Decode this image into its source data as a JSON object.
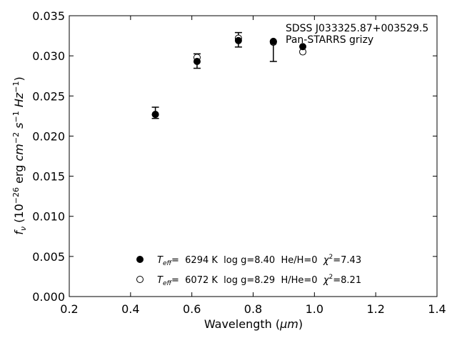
{
  "chart_data": {
    "type": "scatter",
    "title": "",
    "xlabel": "Wavelength",
    "xlabel_unit": "μm",
    "ylabel_prefix": "f",
    "ylabel_sub": "ν",
    "ylabel_mid": "(10",
    "ylabel_exp1": "−26",
    "ylabel_unit1": "erg",
    "ylabel_cm": "cm",
    "ylabel_exp2": "−2",
    "ylabel_s": "s",
    "ylabel_exp3": "−1",
    "ylabel_hz": "Hz",
    "ylabel_exp4": "−1",
    "xlim": [
      0.2,
      1.4
    ],
    "ylim": [
      0.0,
      0.035
    ],
    "x_ticks": [
      0.2,
      0.4,
      0.6,
      0.8,
      1.0,
      1.2,
      1.4
    ],
    "x_tick_labels": [
      "0.2",
      "0.4",
      "0.6",
      "0.8",
      "1.0",
      "1.2",
      "1.4"
    ],
    "y_ticks": [
      0.0,
      0.005,
      0.01,
      0.015,
      0.02,
      0.025,
      0.03,
      0.035
    ],
    "y_tick_labels": [
      "0.000",
      "0.005",
      "0.010",
      "0.015",
      "0.020",
      "0.025",
      "0.030",
      "0.035"
    ],
    "grid": false,
    "annotation": [
      "SDSS J033325.87+003529.5",
      "Pan-STARRS grizy"
    ],
    "observed": {
      "x": [
        0.481,
        0.617,
        0.752,
        0.866,
        0.962
      ],
      "y": [
        0.0229,
        0.02935,
        0.032,
        0.03055,
        0.0311
      ],
      "yerr_lo": [
        0.0007,
        0.0009,
        0.0009,
        0.00125,
        0.0
      ],
      "yerr_hi": [
        0.0007,
        0.0009,
        0.0009,
        0.00125,
        0.0
      ]
    },
    "series": [
      {
        "marker": "filled",
        "label_T": "T",
        "label_Tsub": "eff",
        "label_rest": "=  6294 K  log g=8.40  He/H=0  ",
        "label_chi": "χ",
        "label_chi_exp": "2",
        "label_chi_val": "=7.43",
        "x": [
          0.481,
          0.617,
          0.752,
          0.866,
          0.962
        ],
        "y": [
          0.0227,
          0.0293,
          0.0319,
          0.0318,
          0.03115
        ]
      },
      {
        "marker": "open",
        "label_T": "T",
        "label_Tsub": "eff",
        "label_rest": "=  6072 K  log g=8.29  H/He=0  ",
        "label_chi": "χ",
        "label_chi_exp": "2",
        "label_chi_val": "=8.21",
        "x": [
          0.481,
          0.617,
          0.752,
          0.866,
          0.962
        ],
        "y": [
          0.0227,
          0.0298,
          0.0322,
          0.0317,
          0.0305
        ]
      }
    ]
  }
}
